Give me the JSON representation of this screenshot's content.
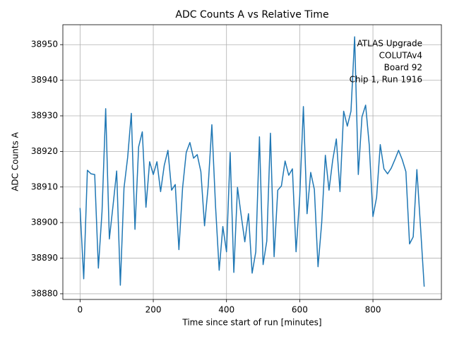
{
  "chart_data": {
    "type": "line",
    "title": "ADC Counts A vs Relative Time",
    "x_label": "Time since start of run [minutes]",
    "y_label": "ADC Counts A",
    "annotation": [
      "ATLAS Upgrade",
      "COLUTAv4",
      "Board 92",
      "Chip 1, Run 1916"
    ],
    "color": "#1f77b4",
    "grid": true,
    "x": [
      0,
      10,
      20,
      30,
      40,
      50,
      60,
      70,
      80,
      90,
      100,
      110,
      120,
      130,
      140,
      150,
      160,
      170,
      180,
      190,
      200,
      210,
      220,
      230,
      240,
      250,
      260,
      270,
      280,
      290,
      300,
      310,
      320,
      330,
      340,
      350,
      360,
      370,
      380,
      390,
      400,
      410,
      420,
      430,
      440,
      450,
      460,
      470,
      480,
      490,
      500,
      510,
      520,
      530,
      540,
      550,
      560,
      570,
      580,
      590,
      600,
      610,
      620,
      630,
      640,
      650,
      660,
      670,
      680,
      690,
      700,
      710,
      720,
      730,
      740,
      750,
      760,
      770,
      780,
      790,
      800,
      810,
      820,
      830,
      840,
      850,
      860,
      870,
      880,
      890,
      900,
      910,
      920,
      930,
      940
    ],
    "values": [
      38904.1,
      38884.2,
      38914.7,
      38913.7,
      38913.5,
      38887.2,
      38903.1,
      38932.0,
      38895.4,
      38904.7,
      38914.5,
      38882.4,
      38909.7,
      38918.3,
      38930.7,
      38898.1,
      38921.3,
      38925.5,
      38904.3,
      38917.1,
      38913.5,
      38917.1,
      38908.7,
      38916.1,
      38920.3,
      38909.1,
      38910.7,
      38892.4,
      38909.7,
      38919.7,
      38922.5,
      38918.1,
      38919.1,
      38914.3,
      38899.1,
      38910.3,
      38927.5,
      38904.7,
      38886.6,
      38898.9,
      38891.8,
      38919.7,
      38886.0,
      38909.9,
      38902.1,
      38894.6,
      38902.5,
      38885.8,
      38891.8,
      38924.1,
      38888.2,
      38894.8,
      38925.1,
      38890.4,
      38909.1,
      38910.3,
      38917.3,
      38913.3,
      38915.1,
      38891.8,
      38907.3,
      38932.6,
      38902.5,
      38914.1,
      38909.3,
      38887.6,
      38899.9,
      38918.9,
      38909.1,
      38917.5,
      38923.5,
      38908.7,
      38931.3,
      38927.1,
      38931.3,
      38952.2,
      38913.5,
      38929.7,
      38933.0,
      38921.7,
      38901.7,
      38907.1,
      38921.9,
      38915.1,
      38913.7,
      38915.3,
      38917.7,
      38920.3,
      38917.7,
      38914.3,
      38894.0,
      38896.0,
      38914.9,
      38898.7,
      38882.0
    ],
    "xlim": [
      -47,
      987
    ],
    "ylim": [
      38878.4,
      38955.6
    ],
    "xticks": [
      0,
      200,
      400,
      600,
      800
    ],
    "yticks": [
      38880,
      38890,
      38900,
      38910,
      38920,
      38930,
      38940,
      38950
    ]
  }
}
